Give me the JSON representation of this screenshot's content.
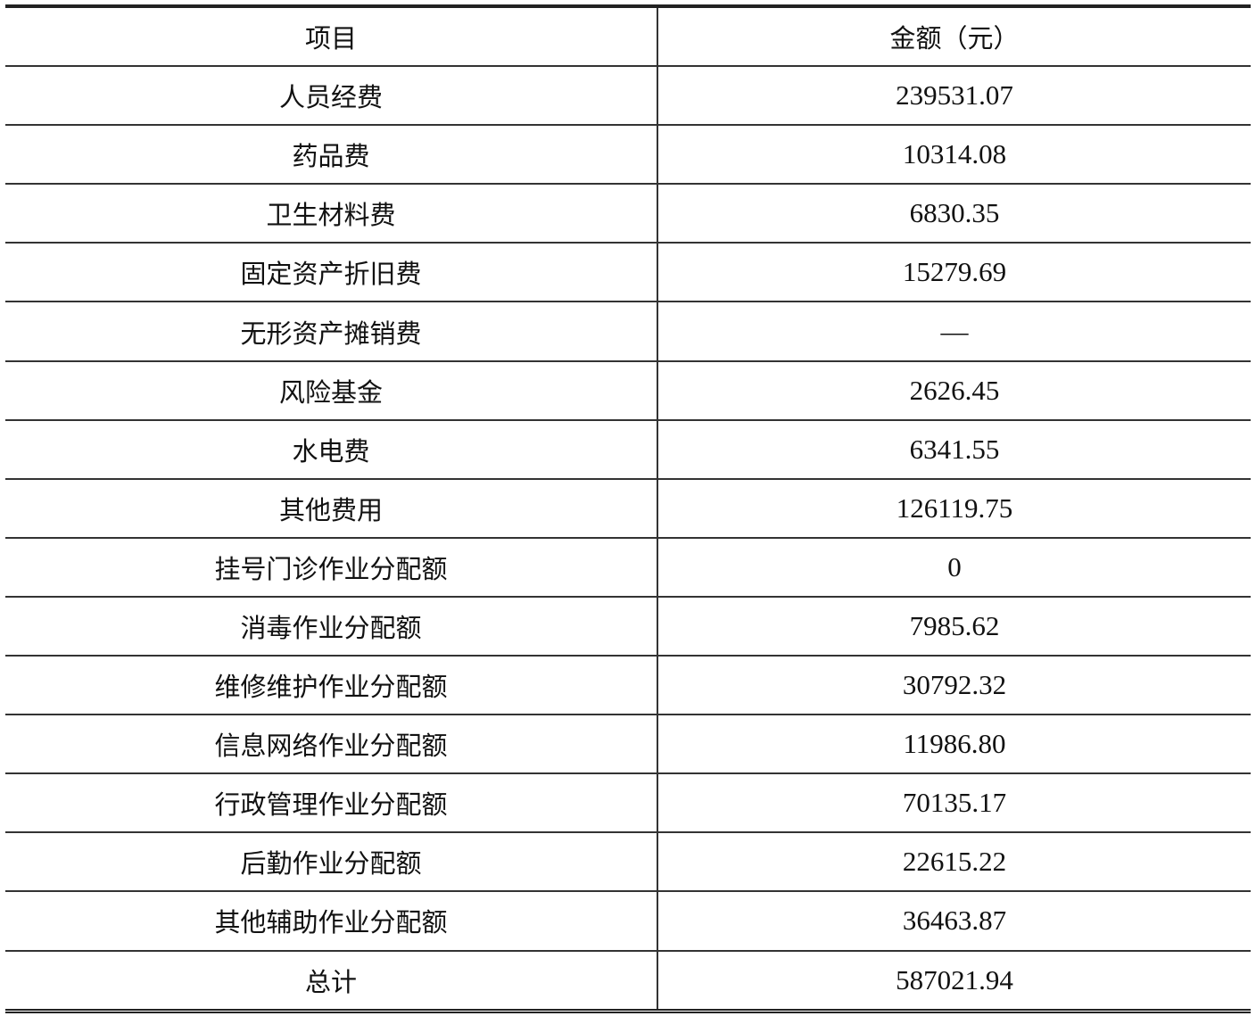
{
  "table": {
    "headers": [
      "项目",
      "金额（元）"
    ],
    "rows": [
      {
        "item": "人员经费",
        "amount": "239531.07"
      },
      {
        "item": "药品费",
        "amount": "10314.08"
      },
      {
        "item": "卫生材料费",
        "amount": "6830.35"
      },
      {
        "item": "固定资产折旧费",
        "amount": "15279.69"
      },
      {
        "item": "无形资产摊销费",
        "amount": "—"
      },
      {
        "item": "风险基金",
        "amount": "2626.45"
      },
      {
        "item": "水电费",
        "amount": "6341.55"
      },
      {
        "item": "其他费用",
        "amount": "126119.75"
      },
      {
        "item": "挂号门诊作业分配额",
        "amount": "0"
      },
      {
        "item": "消毒作业分配额",
        "amount": "7985.62"
      },
      {
        "item": "维修维护作业分配额",
        "amount": "30792.32"
      },
      {
        "item": "信息网络作业分配额",
        "amount": "11986.80"
      },
      {
        "item": "行政管理作业分配额",
        "amount": "70135.17"
      },
      {
        "item": "后勤作业分配额",
        "amount": "22615.22"
      },
      {
        "item": "其他辅助作业分配额",
        "amount": "36463.87"
      },
      {
        "item": "总计",
        "amount": "587021.94"
      }
    ]
  }
}
